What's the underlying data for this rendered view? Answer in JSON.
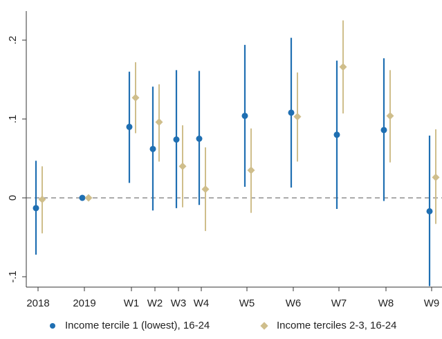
{
  "chart_data": {
    "type": "scatter",
    "subtype": "coefficient-plot-with-confidence-intervals",
    "categories": [
      "2018",
      "2019",
      "W1",
      "W2",
      "W3",
      "W4",
      "W5",
      "W6",
      "W7",
      "W8",
      "W9"
    ],
    "y_tick_labels": [
      ".2",
      ".1",
      "0",
      "-.1"
    ],
    "y_ticks": [
      0.2,
      0.1,
      0,
      -0.1
    ],
    "ylim": [
      -0.113,
      0.23
    ],
    "reference_line": 0,
    "grid": false,
    "legend_position": "bottom",
    "series": [
      {
        "name": "Income tercile 1 (lowest), 16-24",
        "marker": "circle",
        "color": "#1f6fb2",
        "points": [
          {
            "x": "2018",
            "y": -0.013,
            "low": -0.072,
            "high": 0.047
          },
          {
            "x": "2019",
            "y": 0.0,
            "low": 0.0,
            "high": 0.0
          },
          {
            "x": "W1",
            "y": 0.09,
            "low": 0.019,
            "high": 0.16
          },
          {
            "x": "W2",
            "y": 0.062,
            "low": -0.016,
            "high": 0.141
          },
          {
            "x": "W3",
            "y": 0.074,
            "low": -0.013,
            "high": 0.162
          },
          {
            "x": "W4",
            "y": 0.075,
            "low": -0.009,
            "high": 0.161
          },
          {
            "x": "W5",
            "y": 0.104,
            "low": 0.014,
            "high": 0.194
          },
          {
            "x": "W6",
            "y": 0.108,
            "low": 0.013,
            "high": 0.203
          },
          {
            "x": "W7",
            "y": 0.08,
            "low": -0.014,
            "high": 0.174
          },
          {
            "x": "W8",
            "y": 0.086,
            "low": -0.004,
            "high": 0.177
          },
          {
            "x": "W9",
            "y": -0.017,
            "low": -0.112,
            "high": 0.079
          }
        ]
      },
      {
        "name": "Income terciles 2-3, 16-24",
        "marker": "diamond",
        "color": "#cfbe8b",
        "points": [
          {
            "x": "2018",
            "y": -0.002,
            "low": -0.045,
            "high": 0.04
          },
          {
            "x": "2019",
            "y": 0.0,
            "low": 0.0,
            "high": 0.0
          },
          {
            "x": "W1",
            "y": 0.127,
            "low": 0.082,
            "high": 0.172
          },
          {
            "x": "W2",
            "y": 0.096,
            "low": 0.046,
            "high": 0.144
          },
          {
            "x": "W3",
            "y": 0.04,
            "low": -0.012,
            "high": 0.092
          },
          {
            "x": "W4",
            "y": 0.011,
            "low": -0.042,
            "high": 0.064
          },
          {
            "x": "W5",
            "y": 0.035,
            "low": -0.019,
            "high": 0.088
          },
          {
            "x": "W6",
            "y": 0.103,
            "low": 0.046,
            "high": 0.159
          },
          {
            "x": "W7",
            "y": 0.166,
            "low": 0.107,
            "high": 0.225
          },
          {
            "x": "W8",
            "y": 0.104,
            "low": 0.045,
            "high": 0.162
          },
          {
            "x": "W9",
            "y": 0.026,
            "low": -0.033,
            "high": 0.087
          }
        ]
      }
    ]
  },
  "legend": {
    "items": [
      {
        "label": "Income tercile 1 (lowest), 16-24",
        "color": "#1f6fb2",
        "marker": "circle"
      },
      {
        "label": "Income terciles 2-3, 16-24",
        "color": "#cfbe8b",
        "marker": "diamond"
      }
    ]
  }
}
